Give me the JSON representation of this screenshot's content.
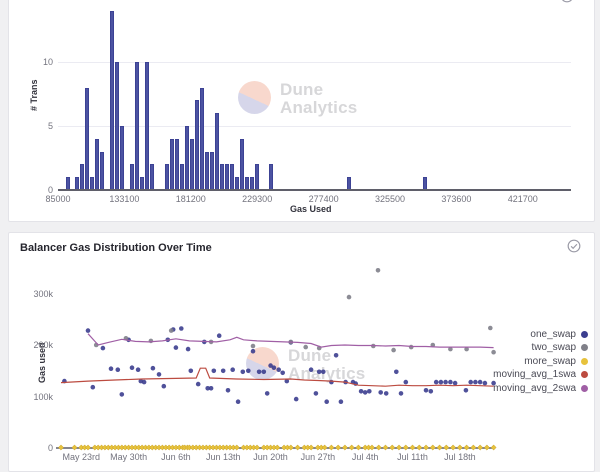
{
  "watermark": {
    "line1": "Dune",
    "line2": "Analytics"
  },
  "colors": {
    "bar_fill": "#4c53a2",
    "bar_border": "#3c4294",
    "one_swap": "#3c3e8f",
    "two_swap": "#808089",
    "more_swap": "#e7c23c",
    "more_swap_border": "#c9a42a",
    "moving_avg_1swa": "#bc4b40",
    "moving_avg_2swa": "#a05fa5",
    "axis": "#5f5f6a",
    "grid": "#ebebf2",
    "tick_text": "#73737e"
  },
  "chart_data": [
    {
      "type": "bar",
      "title": "",
      "xlabel": "Gas Used",
      "ylabel": "# Trans",
      "x_tick_values": [
        85000,
        133100,
        181200,
        229300,
        277400,
        325500,
        373600,
        421700
      ],
      "y_tick_values": [
        0,
        5,
        10
      ],
      "ylim": [
        0,
        14
      ],
      "xlim": [
        85000,
        456000
      ],
      "grid": "horizontal",
      "bars_format": "[gas_used, num_transactions]",
      "bars": [
        [
          92000,
          1
        ],
        [
          99000,
          1
        ],
        [
          102600,
          2
        ],
        [
          106200,
          8
        ],
        [
          109800,
          1
        ],
        [
          113400,
          4
        ],
        [
          117000,
          3
        ],
        [
          124200,
          14
        ],
        [
          127800,
          10
        ],
        [
          131400,
          5
        ],
        [
          138600,
          2
        ],
        [
          142200,
          10
        ],
        [
          145800,
          1
        ],
        [
          149400,
          10
        ],
        [
          153000,
          2
        ],
        [
          164000,
          2
        ],
        [
          167600,
          4
        ],
        [
          171200,
          4
        ],
        [
          174800,
          2
        ],
        [
          178400,
          5
        ],
        [
          182000,
          4
        ],
        [
          185600,
          7
        ],
        [
          189200,
          8
        ],
        [
          192800,
          3
        ],
        [
          196400,
          3
        ],
        [
          200000,
          6
        ],
        [
          203600,
          2
        ],
        [
          207200,
          2
        ],
        [
          210800,
          2
        ],
        [
          214400,
          1
        ],
        [
          218000,
          4
        ],
        [
          221600,
          1
        ],
        [
          225200,
          1
        ],
        [
          228800,
          2
        ],
        [
          239500,
          2
        ],
        [
          295500,
          1
        ],
        [
          351000,
          1
        ]
      ]
    },
    {
      "type": "scatter",
      "title": "Balancer Gas Distribution Over Time",
      "ylabel": "Gas used",
      "xlabel": "",
      "ylim_k": [
        0,
        340
      ],
      "y_ticks": [
        {
          "label": "0",
          "v": 0
        },
        {
          "label": "100k",
          "v": 100
        },
        {
          "label": "200k",
          "v": 200
        },
        {
          "label": "300k",
          "v": 300
        }
      ],
      "x_ticks": [
        {
          "label": "May 23rd",
          "d": 3
        },
        {
          "label": "May 30th",
          "d": 10
        },
        {
          "label": "Jun 6th",
          "d": 17
        },
        {
          "label": "Jun 13th",
          "d": 24
        },
        {
          "label": "Jun 20th",
          "d": 31
        },
        {
          "label": "Jun 27th",
          "d": 38
        },
        {
          "label": "Jul 4th",
          "d": 45
        },
        {
          "label": "Jul 11th",
          "d": 52
        },
        {
          "label": "Jul 18th",
          "d": 59
        }
      ],
      "legend_position": "right",
      "points_format": "[days_since_start, gas_used_thousands]",
      "series": [
        {
          "name": "one_swap",
          "kind": "scatter",
          "color_key": "one_swap",
          "points": [
            [
              0.5,
              130
            ],
            [
              4,
              228
            ],
            [
              4.7,
              118
            ],
            [
              6.2,
              194
            ],
            [
              7.4,
              154
            ],
            [
              8.4,
              152
            ],
            [
              9,
              104
            ],
            [
              10,
              210
            ],
            [
              10.5,
              156
            ],
            [
              11.4,
              152
            ],
            [
              11.8,
              130
            ],
            [
              12.3,
              128
            ],
            [
              13.6,
              155
            ],
            [
              14.5,
              143
            ],
            [
              15.2,
              120
            ],
            [
              15.8,
              210
            ],
            [
              16.6,
              230
            ],
            [
              17,
              195
            ],
            [
              17.8,
              232
            ],
            [
              18.8,
              192
            ],
            [
              19.2,
              150
            ],
            [
              20.3,
              124
            ],
            [
              21.2,
              206
            ],
            [
              21.7,
              116
            ],
            [
              22.2,
              116
            ],
            [
              22.6,
              150
            ],
            [
              23.4,
              218
            ],
            [
              24,
              150
            ],
            [
              24.7,
              112
            ],
            [
              25.4,
              152
            ],
            [
              26.2,
              90
            ],
            [
              26.9,
              148
            ],
            [
              27.7,
              150
            ],
            [
              28.4,
              188
            ],
            [
              29.3,
              148
            ],
            [
              30,
              148
            ],
            [
              30.5,
              106
            ],
            [
              31,
              160
            ],
            [
              31.5,
              156
            ],
            [
              32.2,
              152
            ],
            [
              32.8,
              146
            ],
            [
              33.4,
              130
            ],
            [
              34,
              205
            ],
            [
              34.8,
              95
            ],
            [
              37,
              152
            ],
            [
              37.7,
              106
            ],
            [
              38.2,
              148
            ],
            [
              38.8,
              148
            ],
            [
              39.3,
              90
            ],
            [
              40,
              128
            ],
            [
              40.7,
              180
            ],
            [
              41.4,
              90
            ],
            [
              42.1,
              128
            ],
            [
              43.2,
              128
            ],
            [
              43.6,
              125
            ],
            [
              44.4,
              110
            ],
            [
              45,
              108
            ],
            [
              45.6,
              110
            ],
            [
              47.3,
              108
            ],
            [
              48.1,
              106
            ],
            [
              49.6,
              148
            ],
            [
              50.3,
              106
            ],
            [
              51,
              128
            ],
            [
              54,
              112
            ],
            [
              54.7,
              110
            ],
            [
              55.5,
              128
            ],
            [
              56.2,
              128
            ],
            [
              56.9,
              128
            ],
            [
              57.6,
              128
            ],
            [
              58.3,
              126
            ],
            [
              59.9,
              112
            ],
            [
              60.6,
              128
            ],
            [
              61.3,
              128
            ],
            [
              62,
              128
            ],
            [
              62.7,
              126
            ],
            [
              64,
              126
            ]
          ]
        },
        {
          "name": "two_swap",
          "kind": "scatter",
          "color_key": "two_swap",
          "points": [
            [
              5.2,
              200
            ],
            [
              9.6,
              213
            ],
            [
              13.3,
              208
            ],
            [
              16.3,
              228
            ],
            [
              22.2,
              206
            ],
            [
              28.4,
              198
            ],
            [
              34,
              206
            ],
            [
              36.2,
              196
            ],
            [
              38.2,
              194
            ],
            [
              42.6,
              293
            ],
            [
              46.9,
              345
            ],
            [
              46.2,
              198
            ],
            [
              49.2,
              190
            ],
            [
              51.8,
              196
            ],
            [
              55,
              200
            ],
            [
              57.6,
              192
            ],
            [
              60,
              192
            ],
            [
              63.5,
              233
            ],
            [
              64,
              186
            ]
          ]
        },
        {
          "name": "more_swap",
          "kind": "diamond-on-axis",
          "color_key": "more_swap",
          "value_k": 0,
          "days": [
            0,
            2,
            3,
            3.5,
            4,
            5,
            5.5,
            6,
            6.5,
            7,
            7.5,
            8,
            8.5,
            9,
            9.5,
            10,
            10.5,
            11,
            11.5,
            12,
            12.5,
            13,
            13.5,
            14,
            14.5,
            15,
            15.5,
            16,
            16.5,
            17,
            17.5,
            18,
            18.3,
            18.7,
            19,
            19.5,
            20,
            20.5,
            21,
            21.5,
            22,
            22.5,
            23,
            23.5,
            24,
            24.5,
            25,
            25.5,
            26,
            27,
            27.5,
            28,
            28.5,
            29,
            30,
            30.5,
            31,
            31.5,
            32,
            33,
            33.5,
            34,
            35,
            36,
            36.5,
            37,
            38,
            38.5,
            39,
            40,
            41,
            42,
            43,
            44,
            45,
            45.5,
            46,
            47,
            48,
            49,
            50,
            51,
            52,
            53,
            54,
            55,
            56,
            57,
            58,
            59,
            60,
            61,
            62,
            63,
            64
          ]
        },
        {
          "name": "moving_avg_1swa",
          "kind": "line",
          "color_key": "moving_avg_1swa",
          "points": [
            [
              0,
              127
            ],
            [
              4,
              130
            ],
            [
              8,
              132
            ],
            [
              12,
              134
            ],
            [
              16,
              135
            ],
            [
              20,
              136
            ],
            [
              20.6,
              155
            ],
            [
              21.4,
              155
            ],
            [
              22,
              136
            ],
            [
              26,
              134
            ],
            [
              30,
              133
            ],
            [
              34,
              134
            ],
            [
              36,
              132
            ],
            [
              38,
              131
            ],
            [
              40,
              130
            ],
            [
              42,
              128
            ],
            [
              44,
              122
            ],
            [
              46,
              121
            ],
            [
              48,
              120
            ],
            [
              50,
              122
            ],
            [
              52,
              121
            ],
            [
              54,
              121
            ],
            [
              56,
              122
            ],
            [
              58,
              121
            ],
            [
              60,
              122
            ],
            [
              62,
              121
            ],
            [
              64,
              120
            ]
          ]
        },
        {
          "name": "moving_avg_2swa",
          "kind": "line",
          "color_key": "moving_avg_2swa",
          "points": [
            [
              4,
              222
            ],
            [
              5.5,
              200
            ],
            [
              7,
              205
            ],
            [
              9,
              211
            ],
            [
              11,
              207
            ],
            [
              13,
              206
            ],
            [
              15,
              208
            ],
            [
              17,
              212
            ],
            [
              19,
              208
            ],
            [
              21,
              207
            ],
            [
              23,
              206
            ],
            [
              25,
              210
            ],
            [
              26,
              215
            ],
            [
              27,
              210
            ],
            [
              29,
              208
            ],
            [
              31,
              207
            ],
            [
              33,
              206
            ],
            [
              35,
              205
            ],
            [
              37,
              203
            ],
            [
              38.5,
              196
            ],
            [
              40,
              199
            ],
            [
              42,
              200
            ],
            [
              44,
              199
            ],
            [
              46,
              199
            ],
            [
              48,
              198
            ],
            [
              50,
              199
            ],
            [
              52,
              197
            ],
            [
              54,
              197
            ],
            [
              56,
              196
            ],
            [
              58,
              196
            ],
            [
              60,
              196
            ],
            [
              62,
              196
            ],
            [
              64,
              195
            ]
          ]
        }
      ],
      "legend": [
        {
          "label": "one_swap",
          "color_key": "one_swap"
        },
        {
          "label": "two_swap",
          "color_key": "two_swap"
        },
        {
          "label": "more_swap",
          "color_key": "more_swap"
        },
        {
          "label": "moving_avg_1swa",
          "color_key": "moving_avg_1swa"
        },
        {
          "label": "moving_avg_2swa",
          "color_key": "moving_avg_2swa"
        }
      ]
    }
  ]
}
